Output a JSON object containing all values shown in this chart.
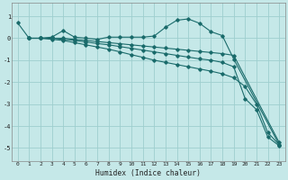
{
  "xlabel": "Humidex (Indice chaleur)",
  "bg_color": "#c5e8e8",
  "grid_color": "#9ecece",
  "line_color": "#1a6b6b",
  "xlim": [
    -0.5,
    23.5
  ],
  "ylim": [
    -5.6,
    1.6
  ],
  "yticks": [
    1,
    0,
    -1,
    -2,
    -3,
    -4,
    -5
  ],
  "xticks": [
    0,
    1,
    2,
    3,
    4,
    5,
    6,
    7,
    8,
    9,
    10,
    11,
    12,
    13,
    14,
    15,
    16,
    17,
    18,
    19,
    20,
    21,
    22,
    23
  ],
  "line1_x": [
    0,
    1,
    2,
    3,
    4,
    5,
    6,
    7,
    8,
    9,
    10,
    11,
    12,
    13,
    14,
    15,
    16,
    17,
    18,
    19,
    23
  ],
  "line1_y": [
    0.7,
    0.0,
    0.0,
    0.05,
    0.35,
    0.05,
    0.0,
    -0.05,
    0.05,
    0.05,
    0.05,
    0.05,
    0.1,
    0.5,
    0.82,
    0.88,
    0.68,
    0.3,
    0.12,
    -0.95,
    -4.85
  ],
  "line2_x": [
    1,
    2,
    3,
    4,
    5,
    6,
    7,
    8,
    9,
    10,
    11,
    12,
    13,
    14,
    15,
    16,
    17,
    18,
    19,
    23
  ],
  "line2_y": [
    0.0,
    0.0,
    0.0,
    0.0,
    -0.05,
    -0.1,
    -0.15,
    -0.2,
    -0.25,
    -0.3,
    -0.35,
    -0.4,
    -0.45,
    -0.5,
    -0.55,
    -0.6,
    -0.65,
    -0.7,
    -0.78,
    -4.75
  ],
  "line3_x": [
    1,
    2,
    3,
    4,
    5,
    6,
    7,
    8,
    9,
    10,
    11,
    12,
    13,
    14,
    15,
    16,
    17,
    18,
    19,
    20,
    21,
    22,
    23
  ],
  "line3_y": [
    0.0,
    0.0,
    -0.05,
    -0.1,
    -0.2,
    -0.3,
    -0.4,
    -0.5,
    -0.62,
    -0.75,
    -0.87,
    -1.0,
    -1.1,
    -1.2,
    -1.3,
    -1.4,
    -1.5,
    -1.62,
    -1.8,
    -2.2,
    -3.0,
    -4.3,
    -4.85
  ],
  "line4_x": [
    1,
    2,
    3,
    4,
    5,
    6,
    7,
    8,
    9,
    10,
    11,
    12,
    13,
    14,
    15,
    16,
    17,
    18,
    19,
    20,
    21,
    22,
    23
  ],
  "line4_y": [
    0.0,
    0.0,
    0.0,
    -0.05,
    -0.1,
    -0.17,
    -0.24,
    -0.3,
    -0.38,
    -0.46,
    -0.54,
    -0.62,
    -0.7,
    -0.78,
    -0.86,
    -0.94,
    -1.0,
    -1.1,
    -1.3,
    -2.75,
    -3.25,
    -4.5,
    -4.9
  ]
}
